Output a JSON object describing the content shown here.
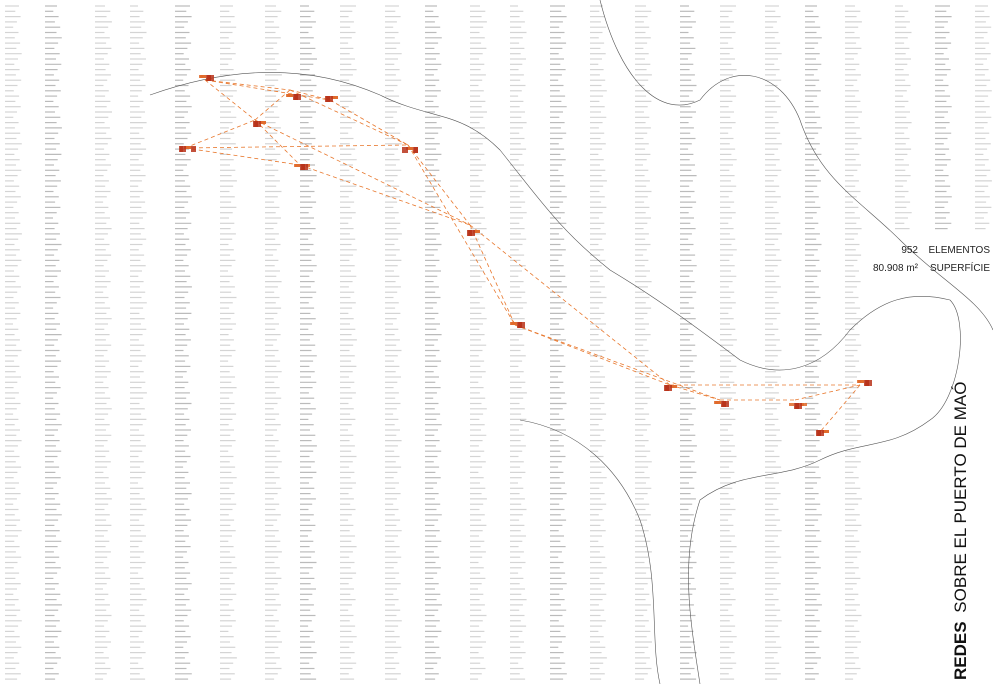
{
  "stats": {
    "count": "952",
    "count_label": "ELEMENTOS",
    "area": "80.908 m²",
    "area_label": "SUPERFÍCIE"
  },
  "title": {
    "bold": "REDES",
    "rest": "SOBRE EL PUERTO DE MAÓ"
  }
}
